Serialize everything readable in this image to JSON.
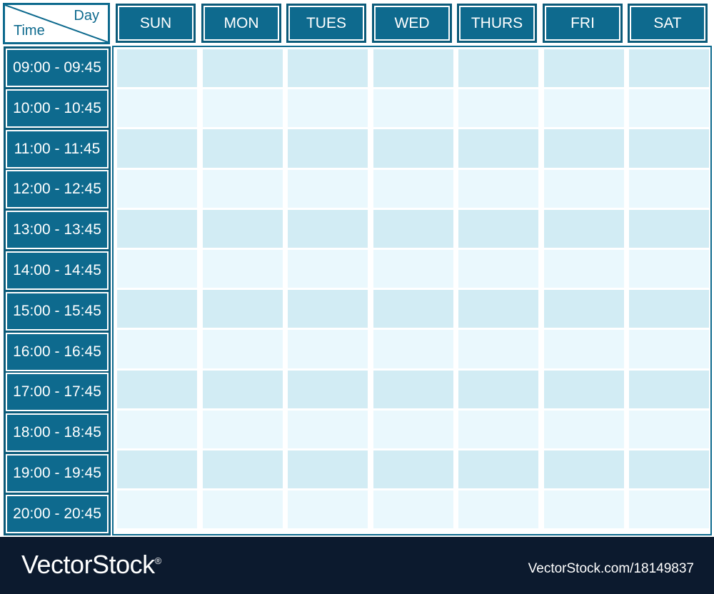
{
  "corner": {
    "day_label": "Day",
    "time_label": "Time"
  },
  "days": [
    "SUN",
    "MON",
    "TUES",
    "WED",
    "THURS",
    "FRI",
    "SAT"
  ],
  "time_slots": [
    "09:00 - 09:45",
    "10:00 - 10:45",
    "11:00 - 11:45",
    "12:00 - 12:45",
    "13:00 - 13:45",
    "14:00 - 14:45",
    "15:00 - 15:45",
    "16:00 - 16:45",
    "17:00 - 17:45",
    "18:00 - 18:45",
    "19:00 - 19:45",
    "20:00 - 20:45"
  ],
  "colors": {
    "header": "#0e6a8e",
    "cell_dark": "#d2ecf4",
    "cell_light": "#eaf8fd",
    "footer": "#0c1a2e"
  },
  "footer": {
    "brand": "VectorStock",
    "registered": "®",
    "url": "VectorStock.com/18149837"
  }
}
